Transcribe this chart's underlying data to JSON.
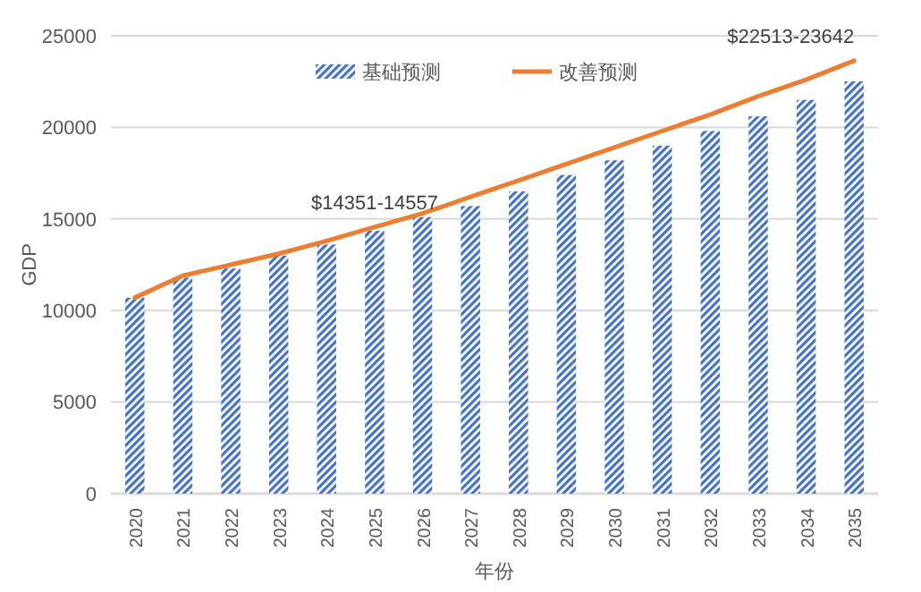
{
  "chart_data": {
    "type": "bar",
    "xlabel": "年份",
    "ylabel": "GDP",
    "categories": [
      "2020",
      "2021",
      "2022",
      "2023",
      "2024",
      "2025",
      "2026",
      "2027",
      "2028",
      "2029",
      "2030",
      "2031",
      "2032",
      "2033",
      "2034",
      "2035"
    ],
    "series": [
      {
        "name": "基础预测",
        "color": "#4472c4",
        "values": [
          10700,
          11800,
          12300,
          13000,
          13600,
          14351,
          15100,
          15700,
          16500,
          17400,
          18200,
          19000,
          19800,
          20600,
          21500,
          22513
        ]
      },
      {
        "name": "改善预测",
        "type": "line",
        "color": "#ed7d31",
        "values": [
          10700,
          11900,
          12500,
          13100,
          13800,
          14557,
          15300,
          16200,
          17100,
          18000,
          18900,
          19800,
          20700,
          21700,
          22600,
          23642
        ]
      }
    ],
    "ylim": [
      0,
      25000
    ],
    "yticks": [
      0,
      5000,
      10000,
      15000,
      20000,
      25000
    ],
    "grid": "y",
    "legend": "top",
    "annotations": [
      {
        "text": "$14351-14557",
        "x": "2025",
        "y": 14557
      },
      {
        "text": "$22513-23642",
        "x": "2035",
        "y": 23642
      }
    ]
  }
}
